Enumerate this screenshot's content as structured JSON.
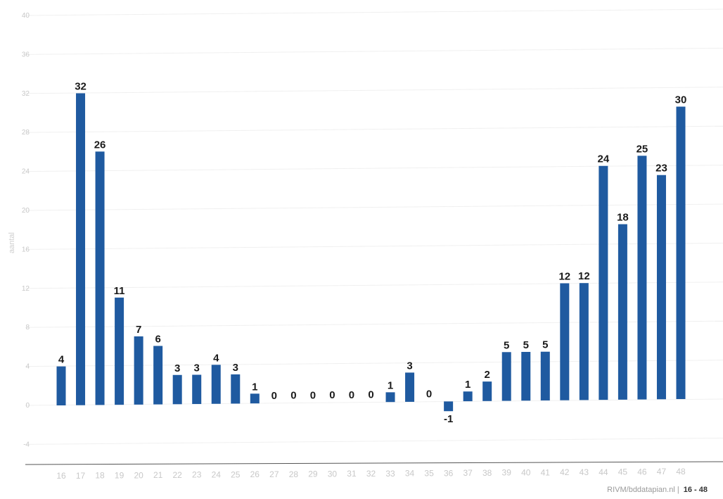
{
  "chart_data": {
    "type": "bar",
    "title": "",
    "xlabel": "",
    "ylabel": "aantal",
    "categories": [
      "16",
      "17",
      "18",
      "19",
      "20",
      "21",
      "22",
      "23",
      "24",
      "25",
      "26",
      "27",
      "28",
      "29",
      "30",
      "31",
      "32",
      "33",
      "34",
      "35",
      "36",
      "37",
      "38",
      "39",
      "40",
      "41",
      "42",
      "43",
      "44",
      "45",
      "46",
      "47",
      "48"
    ],
    "values": [
      4,
      32,
      26,
      11,
      7,
      6,
      3,
      3,
      4,
      3,
      1,
      0,
      0,
      0,
      0,
      0,
      0,
      1,
      3,
      0,
      -1,
      1,
      2,
      5,
      5,
      5,
      12,
      12,
      24,
      18,
      25,
      23,
      30
    ],
    "yticks": [
      -4,
      0,
      4,
      8,
      12,
      16,
      20,
      24,
      28,
      32,
      36,
      40
    ],
    "ylim": [
      -4,
      42
    ],
    "grid": true,
    "bar_color": "#1f5aa0",
    "legend": "none"
  },
  "footer": {
    "source": "RIVM/bddatapian.nl",
    "separator": "|",
    "range": "16 - 48"
  }
}
